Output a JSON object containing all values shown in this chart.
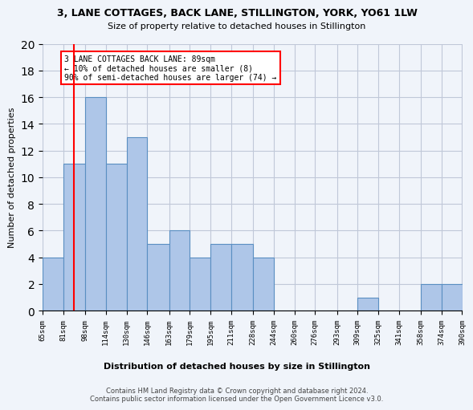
{
  "title": "3, LANE COTTAGES, BACK LANE, STILLINGTON, YORK, YO61 1LW",
  "subtitle": "Size of property relative to detached houses in Stillington",
  "xlabel": "Distribution of detached houses by size in Stillington",
  "ylabel": "Number of detached properties",
  "bar_edges": [
    65,
    81,
    98,
    114,
    130,
    146,
    163,
    179,
    195,
    211,
    228,
    244,
    260,
    276,
    293,
    309,
    325,
    341,
    358,
    374,
    390
  ],
  "bar_heights": [
    4,
    11,
    16,
    11,
    13,
    5,
    6,
    4,
    5,
    5,
    4,
    0,
    0,
    0,
    0,
    1,
    0,
    0,
    2,
    2
  ],
  "bar_color": "#aec6e8",
  "bar_edge_color": "#5a8fc2",
  "property_line_x": 89,
  "property_line_color": "red",
  "annotation_text": "3 LANE COTTAGES BACK LANE: 89sqm\n← 10% of detached houses are smaller (8)\n90% of semi-detached houses are larger (74) →",
  "annotation_box_color": "white",
  "annotation_box_edge_color": "red",
  "ylim": [
    0,
    20
  ],
  "yticks": [
    0,
    2,
    4,
    6,
    8,
    10,
    12,
    14,
    16,
    18,
    20
  ],
  "tick_labels": [
    "65sqm",
    "81sqm",
    "98sqm",
    "114sqm",
    "130sqm",
    "146sqm",
    "163sqm",
    "179sqm",
    "195sqm",
    "211sqm",
    "228sqm",
    "244sqm",
    "260sqm",
    "276sqm",
    "293sqm",
    "309sqm",
    "325sqm",
    "341sqm",
    "358sqm",
    "374sqm",
    "390sqm"
  ],
  "footer": "Contains HM Land Registry data © Crown copyright and database right 2024.\nContains public sector information licensed under the Open Government Licence v3.0.",
  "bg_color": "#f0f4fa"
}
